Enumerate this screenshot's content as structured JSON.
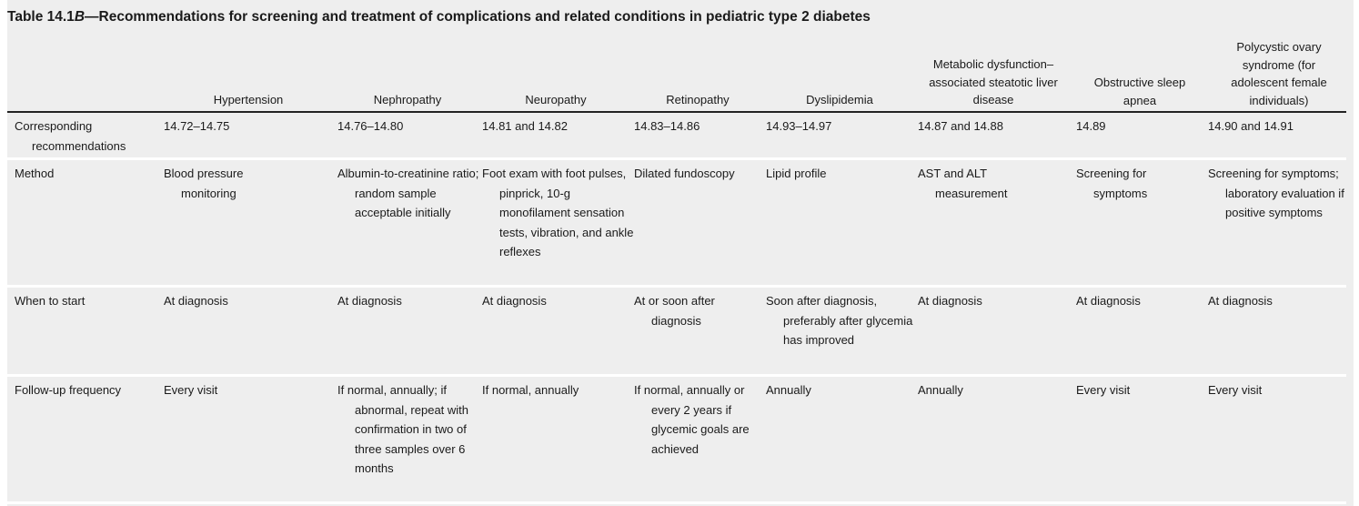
{
  "title": {
    "prefix": "Table 14.1",
    "italic": "B",
    "rest": "—Recommendations for screening and treatment of complications and related conditions in pediatric type 2 diabetes"
  },
  "columns": [
    "Hypertension",
    "Nephropathy",
    "Neuropathy",
    "Retinopathy",
    "Dyslipidemia",
    "Metabolic dysfunction–associated steatotic liver disease",
    "Obstructive sleep apnea",
    "Polycystic ovary syndrome (for adolescent female individuals)"
  ],
  "rows": [
    {
      "label": "Corresponding recommendations",
      "cells": [
        "14.72–14.75",
        "14.76–14.80",
        "14.81 and 14.82",
        "14.83–14.86",
        "14.93–14.97",
        "14.87 and 14.88",
        "14.89",
        "14.90 and 14.91"
      ]
    },
    {
      "label": "Method",
      "cells": [
        "Blood pressure monitoring",
        "Albumin-to-creatinine ratio; random sample acceptable initially",
        "Foot exam with foot pulses, pinprick, 10-g monofilament sensation tests, vibration, and ankle reflexes",
        "Dilated fundoscopy",
        "Lipid profile",
        "AST and ALT measurement",
        "Screening for symptoms",
        "Screening for symptoms; laboratory evaluation if positive symptoms"
      ]
    },
    {
      "label": "When to start",
      "cells": [
        "At diagnosis",
        "At diagnosis",
        "At diagnosis",
        "At or soon after diagnosis",
        "Soon after diagnosis, preferably after glycemia has improved",
        "At diagnosis",
        "At diagnosis",
        "At diagnosis"
      ]
    },
    {
      "label": "Follow-up frequency",
      "cells": [
        "Every visit",
        "If normal, annually; if abnormal, repeat with confirmation in two of three samples over 6 months",
        "If normal, annually",
        "If normal, annually or every 2 years if glycemic goals are achieved",
        "Annually",
        "Annually",
        "Every visit",
        "Every visit"
      ]
    }
  ]
}
